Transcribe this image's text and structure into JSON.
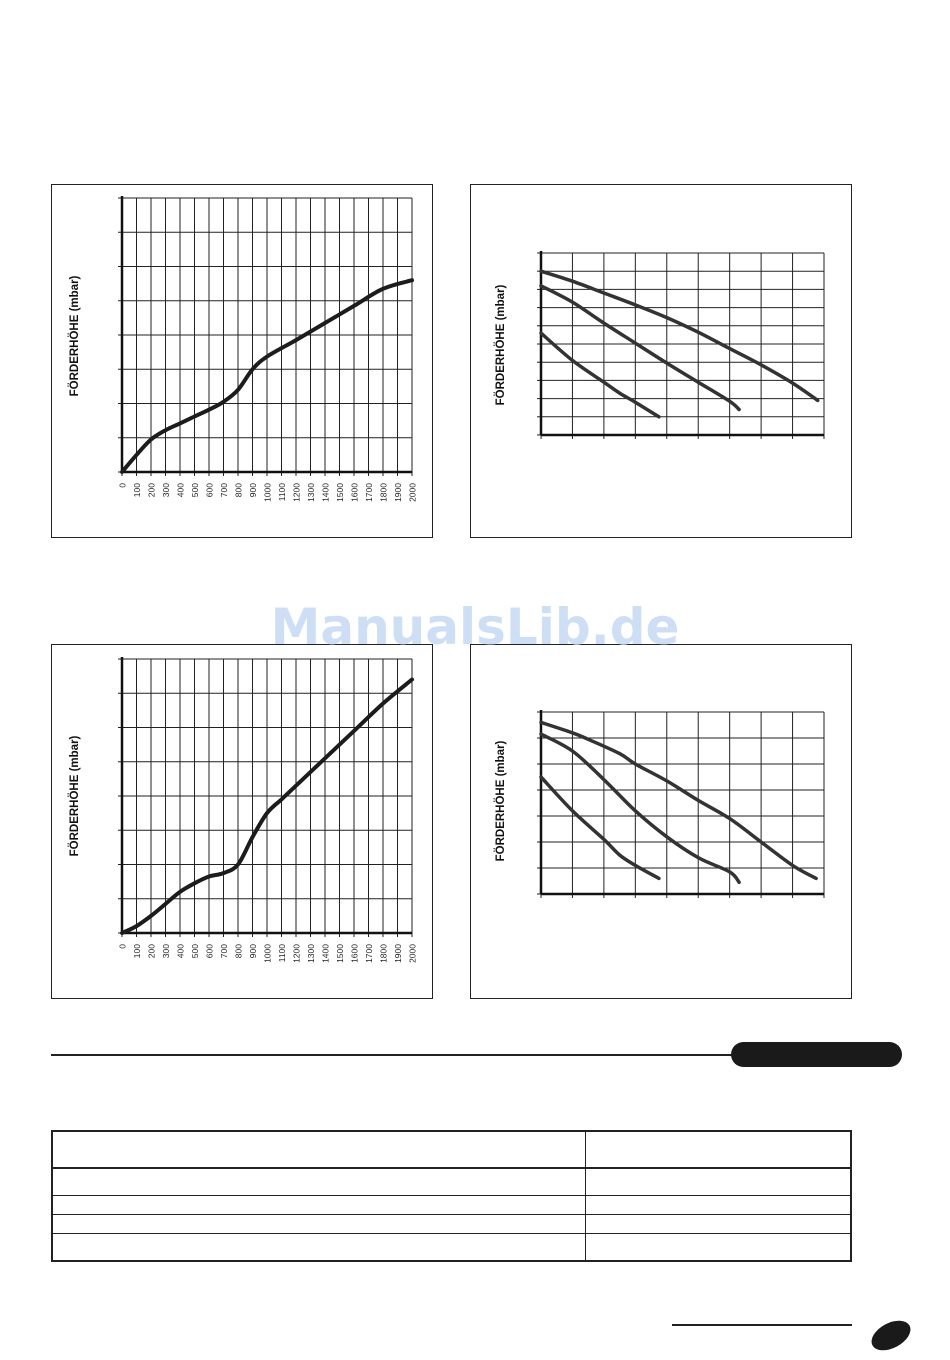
{
  "watermark": "ManualsLib.de",
  "chart_data": [
    {
      "type": "line",
      "ylabel": "FÖRDERHÖHE (mbar)",
      "xlabel": "",
      "x_ticks": [
        "0",
        "100",
        "200",
        "300",
        "400",
        "500",
        "600",
        "700",
        "800",
        "900",
        "1000",
        "1100",
        "1200",
        "1300",
        "1400",
        "1500",
        "1600",
        "1700",
        "1800",
        "1900",
        "2000"
      ],
      "xlim": [
        0,
        2000
      ],
      "ylim": [
        0,
        8
      ],
      "y_grid_divisions": 8,
      "grid": true,
      "series": [
        {
          "x": [
            0,
            100,
            200,
            300,
            400,
            500,
            600,
            700,
            800,
            900,
            1000,
            1200,
            1400,
            1600,
            1800,
            2000
          ],
          "y": [
            0,
            0.5,
            0.95,
            1.22,
            1.42,
            1.62,
            1.82,
            2.05,
            2.4,
            3.0,
            3.37,
            3.85,
            4.35,
            4.85,
            5.35,
            5.6
          ]
        }
      ]
    },
    {
      "type": "line",
      "ylabel": "FÖRDERHÖHE (mbar)",
      "xlabel": "",
      "x_ticks": [],
      "xlim": [
        0,
        9
      ],
      "ylim": [
        0,
        10
      ],
      "grid": true,
      "series": [
        {
          "x": [
            0,
            1,
            2,
            3,
            4,
            5,
            6,
            7,
            8,
            8.8
          ],
          "y": [
            9.0,
            8.45,
            7.8,
            7.15,
            6.45,
            5.65,
            4.75,
            3.85,
            2.85,
            1.9
          ]
        },
        {
          "x": [
            0,
            1,
            2,
            3,
            4,
            5,
            6,
            6.3
          ],
          "y": [
            8.2,
            7.3,
            6.15,
            5.05,
            3.95,
            2.9,
            1.85,
            1.4
          ]
        },
        {
          "x": [
            0,
            1,
            2,
            2.5,
            3,
            3.75
          ],
          "y": [
            5.6,
            4.1,
            2.9,
            2.3,
            1.8,
            1.0
          ]
        }
      ]
    },
    {
      "type": "line",
      "ylabel": "FÖRDERHÖHE (mbar)",
      "xlabel": "",
      "x_ticks": [
        "0",
        "100",
        "200",
        "300",
        "400",
        "500",
        "600",
        "700",
        "800",
        "900",
        "1000",
        "1100",
        "1200",
        "1300",
        "1400",
        "1500",
        "1600",
        "1700",
        "1800",
        "1900",
        "2000"
      ],
      "xlim": [
        0,
        2000
      ],
      "ylim": [
        0,
        8
      ],
      "grid": true,
      "series": [
        {
          "x": [
            0,
            100,
            200,
            300,
            400,
            500,
            600,
            700,
            800,
            900,
            1000,
            1100,
            1200,
            1400,
            1600,
            1800,
            2000
          ],
          "y": [
            0,
            0.2,
            0.5,
            0.85,
            1.2,
            1.45,
            1.65,
            1.75,
            2.0,
            2.8,
            3.5,
            3.9,
            4.3,
            5.1,
            5.9,
            6.7,
            7.4
          ]
        }
      ]
    },
    {
      "type": "line",
      "ylabel": "FÖRDERHÖHE (mbar)",
      "xlabel": "",
      "x_ticks": [],
      "xlim": [
        0,
        9
      ],
      "ylim": [
        0,
        7
      ],
      "grid": true,
      "series": [
        {
          "x": [
            0,
            1,
            1.5,
            2.5,
            3,
            4,
            5,
            6,
            7,
            8,
            8.75
          ],
          "y": [
            6.6,
            6.2,
            5.95,
            5.4,
            5.0,
            4.35,
            3.6,
            2.9,
            2.0,
            1.1,
            0.6
          ]
        },
        {
          "x": [
            0,
            1,
            2,
            3,
            4,
            5,
            6,
            6.3
          ],
          "y": [
            6.15,
            5.5,
            4.4,
            3.2,
            2.2,
            1.4,
            0.85,
            0.45
          ]
        },
        {
          "x": [
            0,
            1,
            2,
            2.5,
            3,
            3.75
          ],
          "y": [
            4.5,
            3.2,
            2.1,
            1.5,
            1.1,
            0.6
          ]
        }
      ]
    }
  ],
  "colors": {
    "line": "#2a2a2a",
    "grid": "#222222",
    "watermark": "#c9dcf5"
  }
}
